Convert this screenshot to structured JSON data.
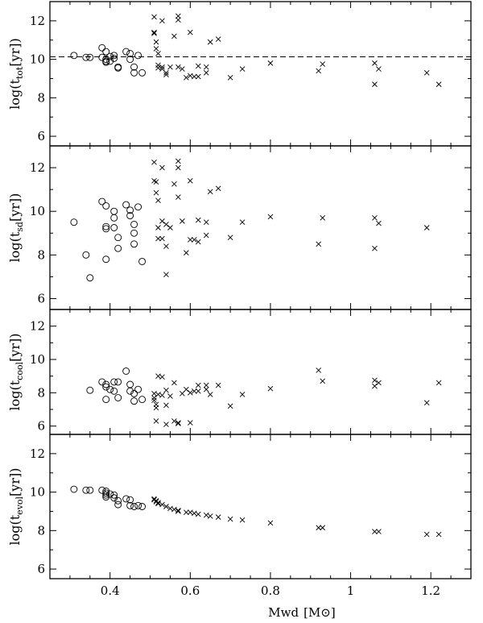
{
  "chart_data": {
    "type": "scatter",
    "xlabel": "Mwd",
    "xunit": "M⊙",
    "xlim": [
      0.25,
      1.3
    ],
    "x_ticks": [
      0.4,
      0.6,
      0.8,
      1,
      1.2
    ],
    "x_tick_labels": [
      "0.4",
      "0.6",
      "0.8",
      "1",
      "1.2"
    ],
    "marker_styles": [
      "circle",
      "cross"
    ],
    "panels": [
      {
        "id": "tot",
        "ylabel_main": "log(t",
        "ylabel_sub": "tot",
        "ylabel_end": "[yr])",
        "ylim": [
          5.5,
          13
        ],
        "y_ticks": [
          6,
          8,
          10,
          12
        ],
        "y_tick_labels": [
          "6",
          "8",
          "10",
          "12"
        ],
        "reference_line": 10.13,
        "circles": [
          [
            0.31,
            10.2
          ],
          [
            0.34,
            10.1
          ],
          [
            0.35,
            10.1
          ],
          [
            0.38,
            10.6
          ],
          [
            0.38,
            10.1
          ],
          [
            0.39,
            10.4
          ],
          [
            0.39,
            10.0
          ],
          [
            0.39,
            9.9
          ],
          [
            0.39,
            9.85
          ],
          [
            0.4,
            10.15
          ],
          [
            0.4,
            9.9
          ],
          [
            0.41,
            10.2
          ],
          [
            0.41,
            10.05
          ],
          [
            0.42,
            9.6
          ],
          [
            0.42,
            9.55
          ],
          [
            0.44,
            10.4
          ],
          [
            0.45,
            10.3
          ],
          [
            0.45,
            10.0
          ],
          [
            0.46,
            9.6
          ],
          [
            0.46,
            9.3
          ],
          [
            0.47,
            10.2
          ],
          [
            0.48,
            9.3
          ]
        ],
        "crosses": [
          [
            0.51,
            12.2
          ],
          [
            0.51,
            11.4
          ],
          [
            0.51,
            11.35
          ],
          [
            0.515,
            10.9
          ],
          [
            0.515,
            10.55
          ],
          [
            0.52,
            10.3
          ],
          [
            0.52,
            9.7
          ],
          [
            0.52,
            9.55
          ],
          [
            0.53,
            12.0
          ],
          [
            0.53,
            9.5
          ],
          [
            0.53,
            9.6
          ],
          [
            0.54,
            9.3
          ],
          [
            0.54,
            9.2
          ],
          [
            0.55,
            9.6
          ],
          [
            0.56,
            11.2
          ],
          [
            0.57,
            12.25
          ],
          [
            0.57,
            12.05
          ],
          [
            0.57,
            9.6
          ],
          [
            0.58,
            9.5
          ],
          [
            0.59,
            9.05
          ],
          [
            0.6,
            11.4
          ],
          [
            0.6,
            9.15
          ],
          [
            0.61,
            9.1
          ],
          [
            0.62,
            9.65
          ],
          [
            0.62,
            9.1
          ],
          [
            0.64,
            9.6
          ],
          [
            0.64,
            9.3
          ],
          [
            0.65,
            10.9
          ],
          [
            0.67,
            11.05
          ],
          [
            0.7,
            9.05
          ],
          [
            0.73,
            9.5
          ],
          [
            0.8,
            9.8
          ],
          [
            0.92,
            9.4
          ],
          [
            0.93,
            9.75
          ],
          [
            1.06,
            9.8
          ],
          [
            1.06,
            8.7
          ],
          [
            1.07,
            9.5
          ],
          [
            1.19,
            9.3
          ],
          [
            1.22,
            8.7
          ]
        ]
      },
      {
        "id": "sd",
        "ylabel_main": "log(t",
        "ylabel_sub": "sd",
        "ylabel_end": "[yr])",
        "ylim": [
          5.5,
          13
        ],
        "y_ticks": [
          6,
          8,
          10,
          12
        ],
        "y_tick_labels": [
          "6",
          "8",
          "10",
          "12"
        ],
        "circles": [
          [
            0.31,
            9.5
          ],
          [
            0.34,
            8.0
          ],
          [
            0.35,
            6.95
          ],
          [
            0.38,
            10.45
          ],
          [
            0.39,
            10.25
          ],
          [
            0.39,
            9.3
          ],
          [
            0.39,
            9.2
          ],
          [
            0.39,
            7.8
          ],
          [
            0.41,
            10.0
          ],
          [
            0.41,
            9.7
          ],
          [
            0.41,
            9.25
          ],
          [
            0.42,
            8.8
          ],
          [
            0.42,
            8.3
          ],
          [
            0.44,
            10.3
          ],
          [
            0.45,
            10.05
          ],
          [
            0.45,
            9.8
          ],
          [
            0.46,
            9.4
          ],
          [
            0.46,
            9.0
          ],
          [
            0.46,
            8.5
          ],
          [
            0.47,
            10.2
          ],
          [
            0.48,
            7.7
          ]
        ],
        "crosses": [
          [
            0.51,
            12.25
          ],
          [
            0.51,
            11.4
          ],
          [
            0.515,
            11.35
          ],
          [
            0.515,
            10.85
          ],
          [
            0.52,
            10.5
          ],
          [
            0.52,
            9.25
          ],
          [
            0.52,
            8.75
          ],
          [
            0.53,
            12.0
          ],
          [
            0.53,
            9.55
          ],
          [
            0.53,
            8.75
          ],
          [
            0.54,
            9.4
          ],
          [
            0.54,
            8.4
          ],
          [
            0.54,
            7.1
          ],
          [
            0.55,
            9.25
          ],
          [
            0.56,
            11.25
          ],
          [
            0.57,
            12.3
          ],
          [
            0.57,
            12.0
          ],
          [
            0.57,
            10.65
          ],
          [
            0.58,
            9.55
          ],
          [
            0.59,
            8.1
          ],
          [
            0.6,
            11.4
          ],
          [
            0.6,
            8.7
          ],
          [
            0.61,
            8.7
          ],
          [
            0.62,
            9.6
          ],
          [
            0.62,
            8.6
          ],
          [
            0.64,
            9.5
          ],
          [
            0.64,
            8.9
          ],
          [
            0.65,
            10.9
          ],
          [
            0.67,
            11.05
          ],
          [
            0.7,
            8.8
          ],
          [
            0.73,
            9.5
          ],
          [
            0.8,
            9.75
          ],
          [
            0.92,
            8.5
          ],
          [
            0.93,
            9.7
          ],
          [
            1.06,
            9.7
          ],
          [
            1.06,
            8.3
          ],
          [
            1.07,
            9.45
          ],
          [
            1.19,
            9.25
          ]
        ]
      },
      {
        "id": "cool",
        "ylabel_main": "log(t",
        "ylabel_sub": "cool",
        "ylabel_end": "[yr])",
        "ylim": [
          5.5,
          13
        ],
        "y_ticks": [
          6,
          8,
          10,
          12
        ],
        "y_tick_labels": [
          "6",
          "8",
          "10",
          "12"
        ],
        "circles": [
          [
            0.35,
            8.15
          ],
          [
            0.38,
            8.65
          ],
          [
            0.39,
            8.5
          ],
          [
            0.39,
            8.35
          ],
          [
            0.39,
            7.6
          ],
          [
            0.4,
            8.2
          ],
          [
            0.41,
            8.65
          ],
          [
            0.41,
            8.1
          ],
          [
            0.42,
            8.65
          ],
          [
            0.42,
            7.7
          ],
          [
            0.44,
            9.3
          ],
          [
            0.45,
            8.5
          ],
          [
            0.45,
            8.1
          ],
          [
            0.46,
            7.95
          ],
          [
            0.46,
            7.5
          ],
          [
            0.47,
            8.2
          ],
          [
            0.48,
            7.6
          ]
        ],
        "crosses": [
          [
            0.51,
            7.95
          ],
          [
            0.51,
            7.7
          ],
          [
            0.51,
            7.55
          ],
          [
            0.515,
            7.3
          ],
          [
            0.515,
            7.1
          ],
          [
            0.515,
            6.3
          ],
          [
            0.52,
            9.0
          ],
          [
            0.52,
            7.9
          ],
          [
            0.53,
            8.95
          ],
          [
            0.53,
            7.85
          ],
          [
            0.54,
            8.15
          ],
          [
            0.54,
            7.25
          ],
          [
            0.54,
            6.1
          ],
          [
            0.55,
            7.8
          ],
          [
            0.56,
            8.6
          ],
          [
            0.56,
            6.3
          ],
          [
            0.57,
            6.2
          ],
          [
            0.57,
            6.15
          ],
          [
            0.58,
            7.95
          ],
          [
            0.59,
            8.2
          ],
          [
            0.6,
            8.0
          ],
          [
            0.6,
            6.2
          ],
          [
            0.61,
            8.1
          ],
          [
            0.62,
            8.45
          ],
          [
            0.62,
            8.1
          ],
          [
            0.64,
            8.45
          ],
          [
            0.64,
            8.2
          ],
          [
            0.65,
            7.9
          ],
          [
            0.67,
            8.45
          ],
          [
            0.7,
            7.2
          ],
          [
            0.73,
            7.9
          ],
          [
            0.8,
            8.25
          ],
          [
            0.92,
            9.35
          ],
          [
            0.93,
            8.7
          ],
          [
            1.06,
            8.75
          ],
          [
            1.06,
            8.4
          ],
          [
            1.07,
            8.6
          ],
          [
            1.19,
            7.4
          ],
          [
            1.22,
            8.6
          ]
        ]
      },
      {
        "id": "evol",
        "ylabel_main": "log(t",
        "ylabel_sub": "evol",
        "ylabel_end": "[yr])",
        "ylim": [
          5.5,
          13
        ],
        "y_ticks": [
          6,
          8,
          10,
          12
        ],
        "y_tick_labels": [
          "6",
          "8",
          "10",
          "12"
        ],
        "circles": [
          [
            0.31,
            10.15
          ],
          [
            0.34,
            10.1
          ],
          [
            0.35,
            10.1
          ],
          [
            0.38,
            10.1
          ],
          [
            0.39,
            10.05
          ],
          [
            0.39,
            9.95
          ],
          [
            0.39,
            9.85
          ],
          [
            0.39,
            9.75
          ],
          [
            0.4,
            9.9
          ],
          [
            0.41,
            9.85
          ],
          [
            0.41,
            9.7
          ],
          [
            0.42,
            9.55
          ],
          [
            0.42,
            9.35
          ],
          [
            0.44,
            9.65
          ],
          [
            0.45,
            9.6
          ],
          [
            0.45,
            9.3
          ],
          [
            0.46,
            9.25
          ],
          [
            0.47,
            9.3
          ],
          [
            0.48,
            9.25
          ]
        ],
        "crosses": [
          [
            0.51,
            9.65
          ],
          [
            0.51,
            9.6
          ],
          [
            0.515,
            9.55
          ],
          [
            0.515,
            9.5
          ],
          [
            0.52,
            9.45
          ],
          [
            0.52,
            9.4
          ],
          [
            0.53,
            9.35
          ],
          [
            0.54,
            9.25
          ],
          [
            0.55,
            9.15
          ],
          [
            0.56,
            9.1
          ],
          [
            0.57,
            9.05
          ],
          [
            0.57,
            9.0
          ],
          [
            0.59,
            8.95
          ],
          [
            0.6,
            8.95
          ],
          [
            0.61,
            8.9
          ],
          [
            0.62,
            8.85
          ],
          [
            0.64,
            8.8
          ],
          [
            0.65,
            8.75
          ],
          [
            0.67,
            8.7
          ],
          [
            0.7,
            8.6
          ],
          [
            0.73,
            8.55
          ],
          [
            0.8,
            8.4
          ],
          [
            0.92,
            8.15
          ],
          [
            0.93,
            8.15
          ],
          [
            1.06,
            7.95
          ],
          [
            1.07,
            7.95
          ],
          [
            1.19,
            7.8
          ],
          [
            1.22,
            7.8
          ]
        ]
      }
    ]
  }
}
